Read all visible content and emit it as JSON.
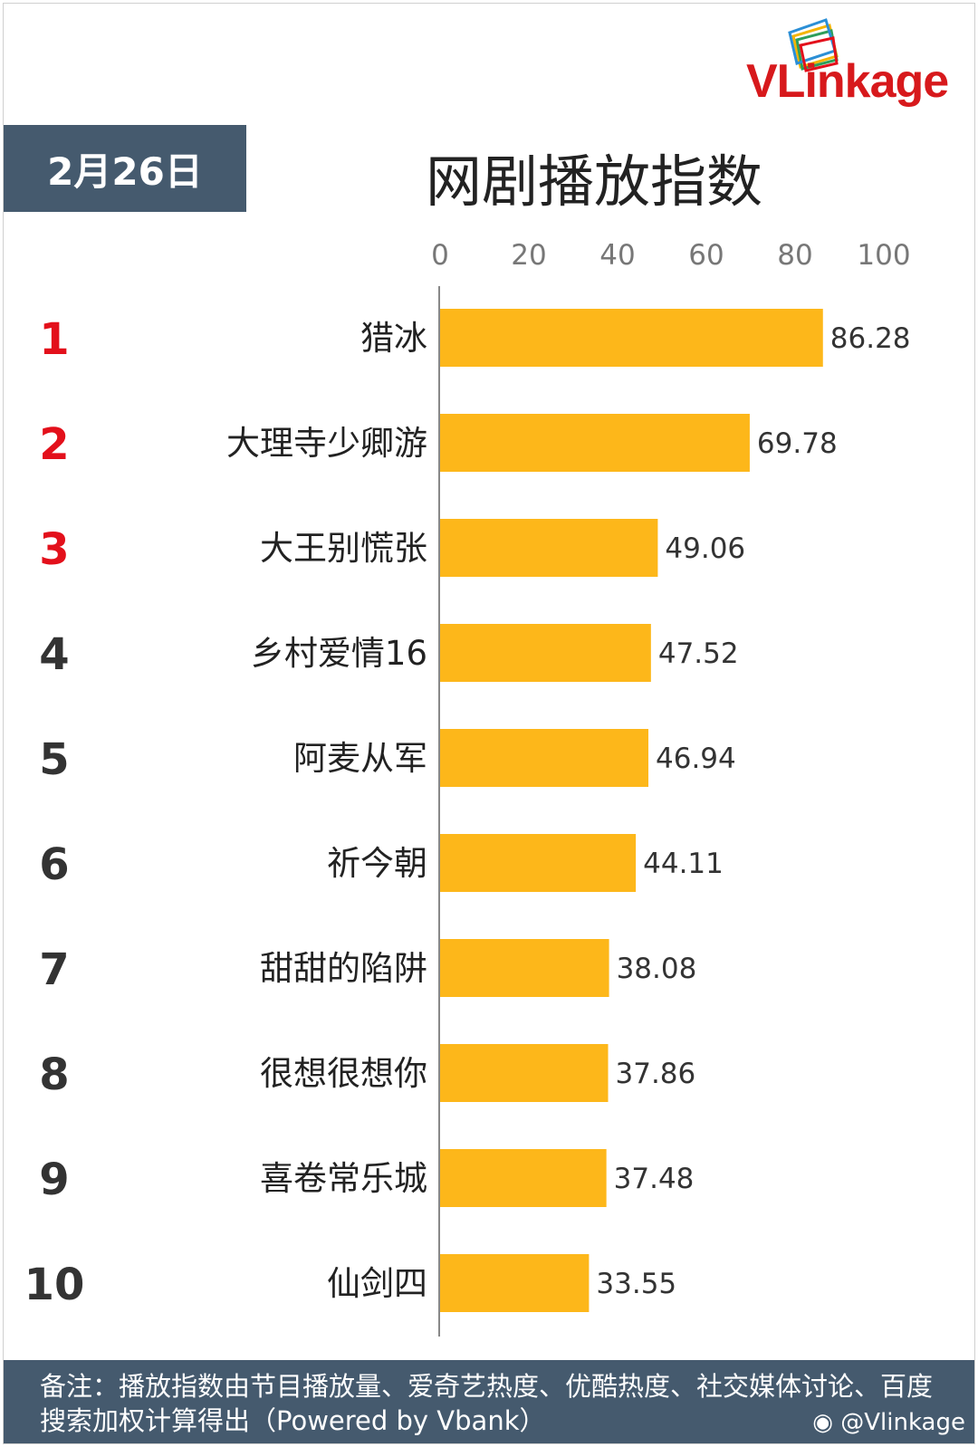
{
  "brand": {
    "logo_text": "VLinkage",
    "logo_color": "#d7191c"
  },
  "date": "2月26日",
  "title": "网剧播放指数",
  "colors": {
    "bar": "#fdb71a",
    "badge_bg": "#455a6e",
    "rank_top": "#e3101b",
    "rank_rest": "#333333"
  },
  "chart_data": {
    "type": "bar",
    "orientation": "horizontal",
    "title": "网剧播放指数",
    "xlim": [
      0,
      100
    ],
    "ticks": [
      0,
      20,
      40,
      60,
      80,
      100
    ],
    "grid": false,
    "ranks": [
      "1",
      "2",
      "3",
      "4",
      "5",
      "6",
      "7",
      "8",
      "9",
      "10"
    ],
    "categories": [
      "猎冰",
      "大理寺少卿游",
      "大王别慌张",
      "乡村爱情16",
      "阿麦从军",
      "祈今朝",
      "甜甜的陷阱",
      "很想很想你",
      "喜卷常乐城",
      "仙剑四"
    ],
    "values": [
      86.28,
      69.78,
      49.06,
      47.52,
      46.94,
      44.11,
      38.08,
      37.86,
      37.48,
      33.55
    ],
    "value_labels": [
      "86.28",
      "69.78",
      "49.06",
      "47.52",
      "46.94",
      "44.11",
      "38.08",
      "37.86",
      "37.48",
      "33.55"
    ]
  },
  "footer": {
    "note": "备注：播放指数由节目播放量、爱奇艺热度、优酷热度、社交媒体讨论、百度搜索加权计算得出（Powered by Vbank）",
    "watermark": "@Vlinkage"
  }
}
